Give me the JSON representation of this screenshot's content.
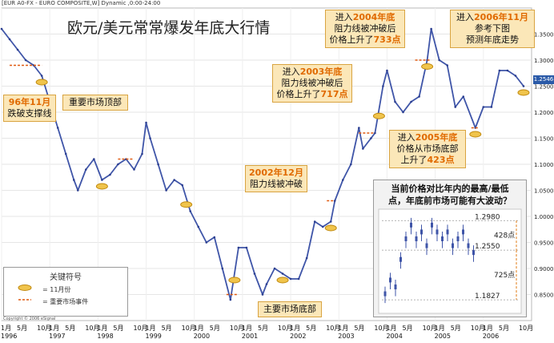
{
  "header": "[EUR A0-FX - EURO COMPOSITE,W] Dynamic ,0:00-24:00",
  "title": "欧元/美元常常爆发年底大行情",
  "price_tag": "1.2546",
  "chart_data": {
    "type": "line",
    "title": "欧元/美元常常爆发年底大行情",
    "xlabel": "",
    "ylabel": "",
    "x_range": [
      "1996-01",
      "2007-01"
    ],
    "ylim": [
      0.8,
      1.4
    ],
    "y_ticks": [
      0.85,
      0.9,
      0.95,
      1.0,
      1.05,
      1.1,
      1.15,
      1.2,
      1.25,
      1.3,
      1.35
    ],
    "y_tick_labels": [
      "0.8500",
      "0.9000",
      "0.9500",
      "1.0000",
      "1.0500",
      "1.1000",
      "1.1500",
      "1.2000",
      "1.2500",
      "1.3000",
      "1.3500"
    ],
    "x_tick_labels": [
      {
        "year": "1996",
        "months": [
          "1月",
          "5月",
          "10月"
        ]
      },
      {
        "year": "1997",
        "months": [
          "1月",
          "5月",
          "10月"
        ]
      },
      {
        "year": "1998",
        "months": [
          "1月",
          "5月",
          "10月"
        ]
      },
      {
        "year": "1999",
        "months": [
          "1月",
          "5月",
          "10月"
        ]
      },
      {
        "year": "2000",
        "months": [
          "1月",
          "5月",
          "10月"
        ]
      },
      {
        "year": "2001",
        "months": [
          "1月",
          "5月",
          "10月"
        ]
      },
      {
        "year": "2002",
        "months": [
          "1月",
          "5月",
          "10月"
        ]
      },
      {
        "year": "2003",
        "months": [
          "1月",
          "5月",
          "10月"
        ]
      },
      {
        "year": "2004",
        "months": [
          "1月",
          "5月",
          "10月"
        ]
      },
      {
        "year": "2005",
        "months": [
          "1月",
          "5月",
          "10月"
        ]
      },
      {
        "year": "2006",
        "months": [
          "1月",
          "5月",
          "10月"
        ]
      }
    ],
    "series": [
      {
        "x": [
          "1996-01",
          "1996-03",
          "1996-05",
          "1996-07",
          "1996-09",
          "1996-11",
          "1997-01",
          "1997-03",
          "1997-05",
          "1997-07",
          "1997-08",
          "1997-10",
          "1997-12",
          "1998-02",
          "1998-04",
          "1998-06",
          "1998-08",
          "1998-10",
          "1998-12",
          "1999-01",
          "1999-02",
          "1999-04",
          "1999-06",
          "1999-08",
          "1999-10",
          "1999-12",
          "2000-02",
          "2000-04",
          "2000-06",
          "2000-08",
          "2000-10",
          "2000-12",
          "2001-02",
          "2001-04",
          "2001-06",
          "2001-07",
          "2001-09",
          "2001-11",
          "2002-01",
          "2002-03",
          "2002-05",
          "2002-07",
          "2002-09",
          "2002-11",
          "2002-12",
          "2003-02",
          "2003-04",
          "2003-06",
          "2003-07",
          "2003-09",
          "2003-10",
          "2003-12",
          "2004-01",
          "2004-03",
          "2004-05",
          "2004-07",
          "2004-09",
          "2004-11",
          "2004-12",
          "2005-02",
          "2005-04",
          "2005-06",
          "2005-08",
          "2005-11",
          "2006-01",
          "2006-03",
          "2006-05",
          "2006-07",
          "2006-09",
          "2006-11"
        ],
        "values": [
          1.36,
          1.34,
          1.32,
          1.3,
          1.29,
          1.27,
          1.22,
          1.17,
          1.12,
          1.07,
          1.05,
          1.09,
          1.11,
          1.07,
          1.08,
          1.1,
          1.11,
          1.09,
          1.12,
          1.18,
          1.15,
          1.1,
          1.05,
          1.07,
          1.06,
          1.01,
          0.98,
          0.95,
          0.96,
          0.9,
          0.84,
          0.94,
          0.94,
          0.89,
          0.85,
          0.87,
          0.9,
          0.89,
          0.88,
          0.88,
          0.92,
          0.99,
          0.98,
          0.99,
          1.03,
          1.07,
          1.1,
          1.17,
          1.13,
          1.15,
          1.16,
          1.25,
          1.28,
          1.22,
          1.2,
          1.22,
          1.23,
          1.3,
          1.36,
          1.3,
          1.29,
          1.21,
          1.23,
          1.17,
          1.21,
          1.21,
          1.28,
          1.28,
          1.27,
          1.25
        ]
      }
    ],
    "legend": {
      "title": "关键符号",
      "items": [
        "= 11月份",
        "= 重要市场事件"
      ]
    }
  },
  "annotations": [
    {
      "lines": [
        "96年11月",
        "跌破支撑线"
      ],
      "highlight": ""
    },
    {
      "lines": [
        "重要市场顶部"
      ],
      "highlight": ""
    },
    {
      "lines": [
        "2002年12月",
        "阻力线被冲破"
      ],
      "highlight": "2002年12月"
    },
    {
      "lines": [
        "主要市场底部"
      ],
      "highlight": ""
    },
    {
      "lines": [
        "进入2003年底",
        "阻力线被冲破后",
        "价格上升了717点"
      ],
      "highlight": [
        "2003年底",
        "717点"
      ]
    },
    {
      "lines": [
        "进入2004年底",
        "阻力线被冲破后",
        "价格上升了733点"
      ],
      "highlight": [
        "2004年底",
        "733点"
      ]
    },
    {
      "lines": [
        "进入2005年底",
        "价格从市场底部",
        "上升了423点"
      ],
      "highlight": [
        "2005年底",
        "423点"
      ]
    },
    {
      "lines": [
        "进入2006年11月",
        "参考下图",
        "预测年底走势"
      ],
      "highlight": [
        "2006年11月"
      ]
    }
  ],
  "inset": {
    "question": [
      "当前价格对比年内的最高/最低",
      "点，年底前市场可能有大波动？"
    ],
    "levels": [
      "1.2980",
      "1.2550",
      "1.1827"
    ],
    "ranges": [
      "428点",
      "725点"
    ]
  },
  "copyright": "Copyright © 2006 eSignal"
}
